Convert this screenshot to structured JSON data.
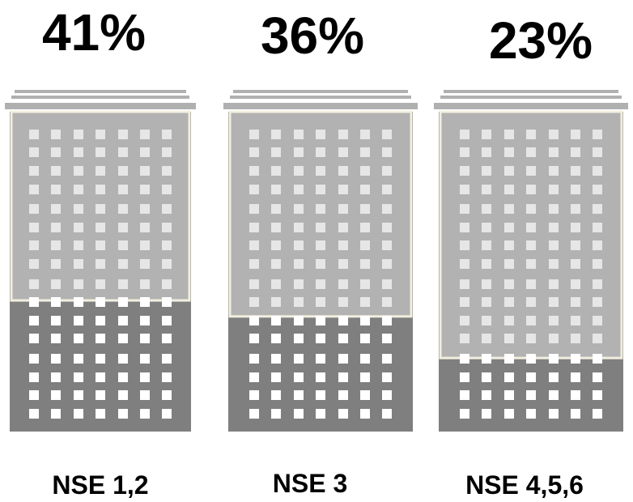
{
  "chart_data": {
    "type": "bar",
    "title": "",
    "xlabel": "",
    "ylabel": "",
    "ylim": [
      0,
      100
    ],
    "categories": [
      "NSE 1,2",
      "NSE 3",
      "NSE 4,5,6"
    ],
    "values": [
      41,
      36,
      23
    ],
    "value_labels": [
      "41%",
      "36%",
      "23%"
    ],
    "grid": false,
    "legend": "none",
    "colors": {
      "building_dark": "#7f7f7f",
      "building_light": "#b2b2b2",
      "window": "#ffffff",
      "window_light": "#e6e6e6",
      "outline": "#f2efdf",
      "roof": "#b0b0b0"
    }
  }
}
